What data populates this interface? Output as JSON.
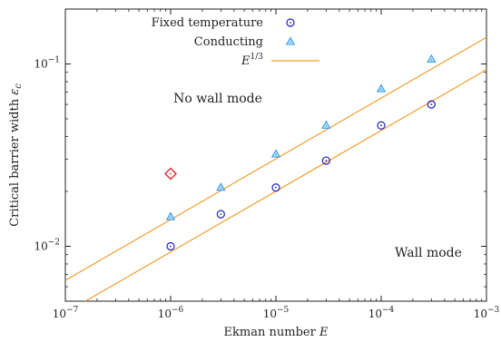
{
  "chart_data": {
    "type": "scatter",
    "xlabel": "Ekman number E",
    "ylabel": "Critical barrier width ε_c",
    "xscale": "log",
    "yscale": "log",
    "xlim": [
      1e-07,
      0.001
    ],
    "ylim": [
      0.005,
      0.2
    ],
    "grid": false,
    "legend_position": "top-center",
    "x_ticks": [
      {
        "value": 1e-07,
        "label": "10^-7"
      },
      {
        "value": 1e-06,
        "label": "10^-6"
      },
      {
        "value": 1e-05,
        "label": "10^-5"
      },
      {
        "value": 0.0001,
        "label": "10^-4"
      },
      {
        "value": 0.001,
        "label": "10^-3"
      }
    ],
    "y_ticks": [
      {
        "value": 0.01,
        "label": "10^-2"
      },
      {
        "value": 0.1,
        "label": "10^-1"
      }
    ],
    "series": [
      {
        "name": "Fixed temperature",
        "marker": "circle",
        "color": "#1f1fbf",
        "x": [
          1e-06,
          3e-06,
          1e-05,
          3e-05,
          0.0001,
          0.0003
        ],
        "y": [
          0.01,
          0.015,
          0.021,
          0.0295,
          0.046,
          0.06
        ]
      },
      {
        "name": "Conducting",
        "marker": "triangle",
        "color": "#3399ee",
        "x": [
          1e-06,
          3e-06,
          1e-05,
          3e-05,
          0.0001,
          0.0003
        ],
        "y": [
          0.0145,
          0.021,
          0.032,
          0.046,
          0.073,
          0.106
        ]
      }
    ],
    "fit_lines": [
      {
        "legend_label": "E^1/3",
        "color": "#f0a030",
        "coefficient": 0.93,
        "exponent": 0.3333
      },
      {
        "legend_label": "",
        "color": "#f0a030",
        "coefficient": 1.4,
        "exponent": 0.3333
      }
    ],
    "extra_markers": [
      {
        "marker": "diamond",
        "color": "#e02020",
        "x": 1e-06,
        "y": 0.025
      }
    ],
    "annotations": [
      {
        "text": "No wall mode",
        "x": 1e-06,
        "y": 0.065
      },
      {
        "text": "Wall mode",
        "x": 0.0001,
        "y": 0.0093
      }
    ]
  }
}
